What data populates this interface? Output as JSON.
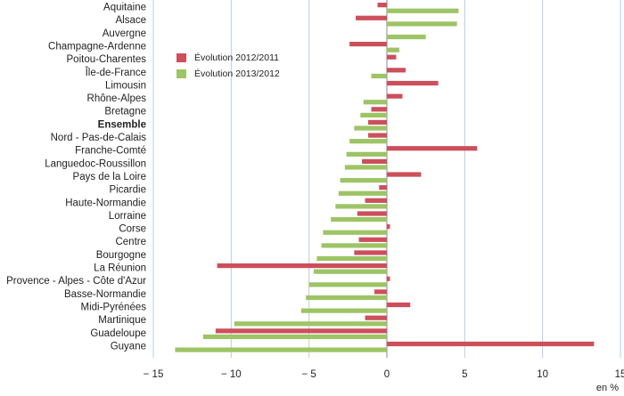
{
  "chart_data": {
    "type": "bar",
    "orientation": "horizontal",
    "categories": [
      "Aquitaine",
      "Alsace",
      "Auvergne",
      "Champagne-Ardenne",
      "Poitou-Charentes",
      "Île-de-France",
      "Limousin",
      "Rhône-Alpes",
      "Bretagne",
      "Ensemble",
      "Nord - Pas-de-Calais",
      "Franche-Comté",
      "Languedoc-Roussillon",
      "Pays de la Loire",
      "Picardie",
      "Haute-Normandie",
      "Lorraine",
      "Corse",
      "Centre",
      "Bourgogne",
      "La Réunion",
      "Provence - Alpes - Côte d'Azur",
      "Basse-Normandie",
      "Midi-Pyrénées",
      "Martinique",
      "Guadeloupe",
      "Guyane"
    ],
    "emphasized_category": "Ensemble",
    "series": [
      {
        "name": "Évolution 2012/2011",
        "color": "#cc4f5b",
        "values": [
          -0.6,
          -2.0,
          0.0,
          -2.4,
          0.6,
          1.2,
          3.3,
          1.0,
          -1.0,
          -1.2,
          -1.2,
          5.8,
          -1.6,
          2.2,
          -0.5,
          -1.4,
          -1.9,
          0.2,
          -1.8,
          -2.1,
          -10.9,
          0.2,
          -0.8,
          1.5,
          -1.4,
          -11.0,
          13.3
        ]
      },
      {
        "name": "Évolution 2013/2012",
        "color": "#9dc465",
        "values": [
          4.6,
          4.5,
          2.5,
          0.8,
          0.0,
          -1.0,
          0.0,
          -1.5,
          -1.7,
          -2.1,
          -2.4,
          -2.6,
          -2.7,
          -3.0,
          -3.1,
          -3.3,
          -3.6,
          -4.1,
          -4.2,
          -4.5,
          -4.7,
          -5.0,
          -5.2,
          -5.5,
          -9.8,
          -11.8,
          -13.6
        ]
      }
    ],
    "xlim": [
      -15,
      15
    ],
    "xticks": [
      -15,
      -10,
      -5,
      0,
      5,
      10,
      15
    ],
    "xlabel": "en %",
    "grid": "vertical",
    "legend_position": "top-left inside plot"
  }
}
